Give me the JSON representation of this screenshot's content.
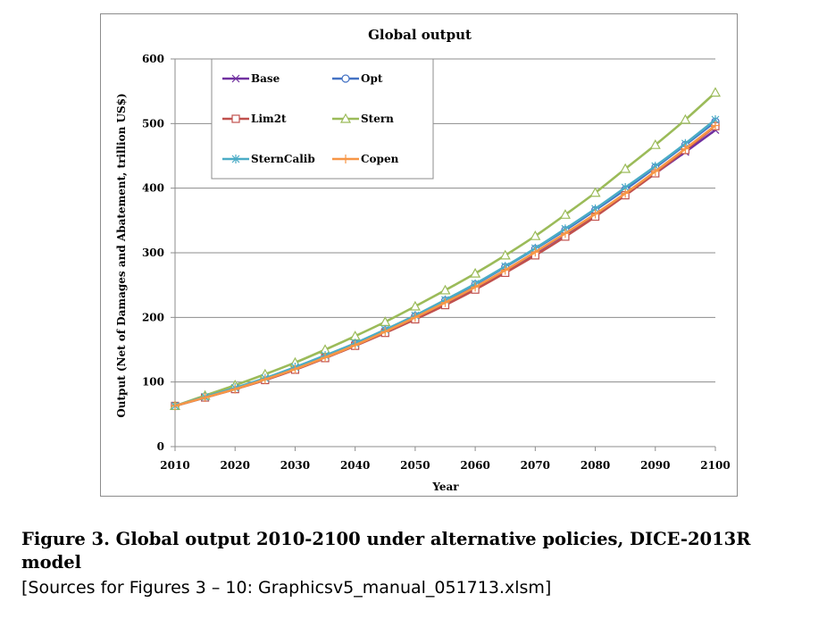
{
  "chart_data": {
    "type": "line",
    "title": "Global output",
    "xlabel": "Year",
    "ylabel": "Output (Net of Damages and Abatement, trillion US$)",
    "xlim": [
      2010,
      2100
    ],
    "ylim": [
      0,
      600
    ],
    "xticks": [
      2010,
      2020,
      2030,
      2040,
      2050,
      2060,
      2070,
      2080,
      2090,
      2100
    ],
    "yticks": [
      0,
      100,
      200,
      300,
      400,
      500,
      600
    ],
    "grid": "horizontal",
    "legend_position": "top-left",
    "x": [
      2010,
      2015,
      2020,
      2025,
      2030,
      2035,
      2040,
      2045,
      2050,
      2055,
      2060,
      2065,
      2070,
      2075,
      2080,
      2085,
      2090,
      2095,
      2100
    ],
    "series": [
      {
        "name": "Base",
        "color": "#7030a0",
        "marker": "x",
        "values": [
          63,
          76,
          89,
          104,
          120,
          138,
          157,
          177,
          199,
          222,
          246,
          272,
          300,
          329,
          359,
          390,
          423,
          456,
          490
        ]
      },
      {
        "name": "Opt",
        "color": "#4472c4",
        "marker": "circle",
        "values": [
          63,
          76,
          90,
          105,
          122,
          140,
          159,
          180,
          202,
          226,
          251,
          278,
          306,
          335,
          366,
          398,
          432,
          467,
          503
        ]
      },
      {
        "name": "Lim2t",
        "color": "#c0504d",
        "marker": "square",
        "values": [
          63,
          76,
          89,
          103,
          119,
          137,
          156,
          176,
          197,
          219,
          243,
          269,
          296,
          325,
          356,
          389,
          423,
          459,
          496
        ]
      },
      {
        "name": "Stern",
        "color": "#9bbb59",
        "marker": "triangle",
        "values": [
          63,
          79,
          95,
          112,
          130,
          150,
          171,
          193,
          217,
          242,
          268,
          296,
          326,
          359,
          393,
          430,
          467,
          506,
          548
        ]
      },
      {
        "name": "SternCalib",
        "color": "#4bacc6",
        "marker": "asterisk",
        "values": [
          63,
          77,
          91,
          106,
          123,
          141,
          160,
          181,
          203,
          227,
          252,
          279,
          307,
          337,
          368,
          401,
          434,
          469,
          506
        ]
      },
      {
        "name": "Copen",
        "color": "#f79646",
        "marker": "plus",
        "values": [
          63,
          76,
          89,
          104,
          120,
          138,
          157,
          178,
          200,
          223,
          247,
          273,
          301,
          330,
          360,
          392,
          426,
          461,
          497
        ]
      }
    ]
  },
  "caption": {
    "title": "Figure 3. Global output 2010-2100 under alternative policies, DICE-2013R model",
    "source": "[Sources for Figures 3 – 10: Graphicsv5_manual_051713.xlsm]"
  }
}
